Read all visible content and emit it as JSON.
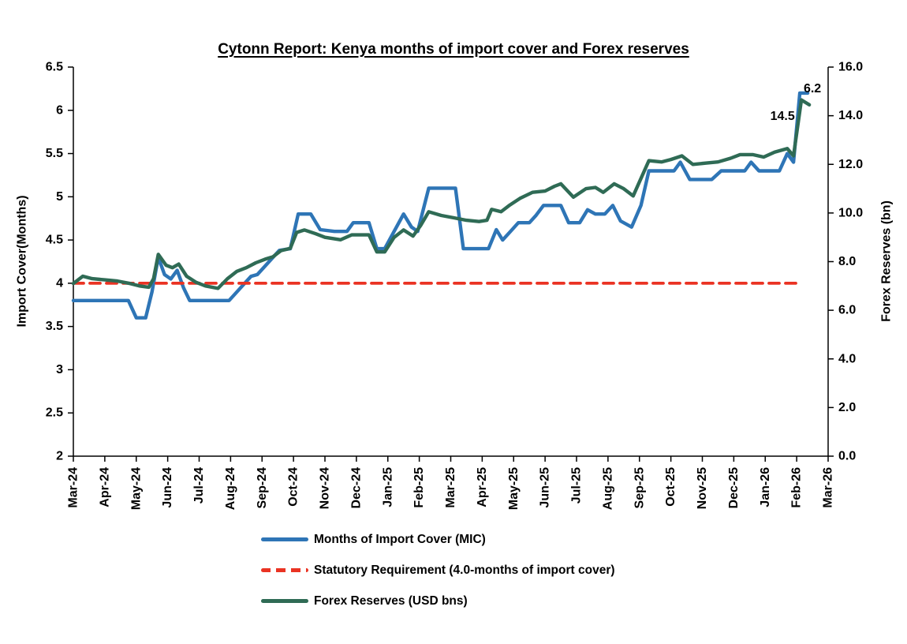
{
  "chart_data": {
    "type": "line",
    "title": "Cytonn Report: Kenya months of import cover and Forex reserves",
    "x_unit": "months after Mar-24 (weekly data points)",
    "x_categories": [
      "Mar-24",
      "Apr-24",
      "May-24",
      "Jun-24",
      "Jul-24",
      "Aug-24",
      "Sep-24",
      "Oct-24",
      "Nov-24",
      "Dec-24",
      "Jan-25",
      "Feb-25",
      "Mar-25",
      "Apr-25",
      "May-25",
      "Jun-25",
      "Jul-25",
      "Aug-25",
      "Sep-25",
      "Oct-25",
      "Nov-25",
      "Dec-25",
      "Jan-26",
      "Feb-26",
      "Mar-26"
    ],
    "left_axis": {
      "label": "Import Cover(Months)",
      "range": [
        2,
        6.5
      ],
      "tick_step": 0.5
    },
    "right_axis": {
      "label": "Forex Reserves (bn)",
      "range": [
        0,
        16
      ],
      "tick_step": 2
    },
    "x_range_months": [
      0,
      24
    ],
    "grid": false,
    "legend_position": "bottom-left",
    "series": [
      {
        "name": "Months of Import Cover (MIC)",
        "axis": "left",
        "color": "#2E75B6",
        "style": "solid",
        "points": [
          [
            0,
            3.8
          ],
          [
            0.5,
            3.8
          ],
          [
            1.0,
            3.8
          ],
          [
            1.5,
            3.8
          ],
          [
            1.75,
            3.8
          ],
          [
            2.0,
            3.6
          ],
          [
            2.3,
            3.6
          ],
          [
            2.5,
            3.9
          ],
          [
            2.7,
            4.3
          ],
          [
            2.9,
            4.1
          ],
          [
            3.1,
            4.05
          ],
          [
            3.3,
            4.15
          ],
          [
            3.5,
            3.95
          ],
          [
            3.7,
            3.8
          ],
          [
            4.1,
            3.8
          ],
          [
            4.5,
            3.8
          ],
          [
            4.95,
            3.8
          ],
          [
            5.2,
            3.9
          ],
          [
            5.45,
            4.0
          ],
          [
            5.65,
            4.08
          ],
          [
            5.85,
            4.1
          ],
          [
            6.1,
            4.2
          ],
          [
            6.35,
            4.3
          ],
          [
            6.55,
            4.38
          ],
          [
            6.9,
            4.4
          ],
          [
            7.15,
            4.8
          ],
          [
            7.55,
            4.8
          ],
          [
            7.85,
            4.62
          ],
          [
            8.3,
            4.6
          ],
          [
            8.7,
            4.6
          ],
          [
            8.9,
            4.7
          ],
          [
            9.4,
            4.7
          ],
          [
            9.65,
            4.4
          ],
          [
            9.9,
            4.4
          ],
          [
            10.2,
            4.6
          ],
          [
            10.5,
            4.8
          ],
          [
            10.75,
            4.65
          ],
          [
            10.95,
            4.6
          ],
          [
            11.3,
            5.1
          ],
          [
            11.7,
            5.1
          ],
          [
            12.15,
            5.1
          ],
          [
            12.4,
            4.4
          ],
          [
            12.8,
            4.4
          ],
          [
            13.2,
            4.4
          ],
          [
            13.45,
            4.62
          ],
          [
            13.65,
            4.5
          ],
          [
            13.9,
            4.6
          ],
          [
            14.15,
            4.7
          ],
          [
            14.5,
            4.7
          ],
          [
            14.7,
            4.78
          ],
          [
            14.95,
            4.9
          ],
          [
            15.5,
            4.9
          ],
          [
            15.75,
            4.7
          ],
          [
            16.1,
            4.7
          ],
          [
            16.35,
            4.85
          ],
          [
            16.6,
            4.8
          ],
          [
            16.9,
            4.8
          ],
          [
            17.15,
            4.9
          ],
          [
            17.4,
            4.72
          ],
          [
            17.75,
            4.65
          ],
          [
            18.05,
            4.9
          ],
          [
            18.3,
            5.3
          ],
          [
            18.75,
            5.3
          ],
          [
            19.1,
            5.3
          ],
          [
            19.3,
            5.4
          ],
          [
            19.6,
            5.2
          ],
          [
            20.0,
            5.2
          ],
          [
            20.3,
            5.2
          ],
          [
            20.6,
            5.3
          ],
          [
            21.0,
            5.3
          ],
          [
            21.35,
            5.3
          ],
          [
            21.55,
            5.4
          ],
          [
            21.8,
            5.3
          ],
          [
            22.2,
            5.3
          ],
          [
            22.45,
            5.3
          ],
          [
            22.7,
            5.5
          ],
          [
            22.9,
            5.4
          ],
          [
            23.1,
            6.2
          ],
          [
            23.35,
            6.2
          ]
        ]
      },
      {
        "name": "Statutory Requirement (4.0-months of import cover)",
        "axis": "left",
        "color": "#EA3323",
        "style": "dashed",
        "points": [
          [
            0,
            4.0
          ],
          [
            23.0,
            4.0
          ]
        ]
      },
      {
        "name": "Forex Reserves (USD bns)",
        "axis": "right",
        "color": "#2F6B55",
        "style": "solid",
        "points": [
          [
            0,
            7.1
          ],
          [
            0.3,
            7.4
          ],
          [
            0.6,
            7.3
          ],
          [
            1.0,
            7.25
          ],
          [
            1.4,
            7.2
          ],
          [
            1.8,
            7.1
          ],
          [
            2.1,
            7.0
          ],
          [
            2.4,
            6.95
          ],
          [
            2.55,
            7.3
          ],
          [
            2.7,
            8.3
          ],
          [
            2.95,
            7.85
          ],
          [
            3.15,
            7.75
          ],
          [
            3.35,
            7.9
          ],
          [
            3.6,
            7.4
          ],
          [
            3.9,
            7.15
          ],
          [
            4.2,
            7.0
          ],
          [
            4.6,
            6.9
          ],
          [
            4.9,
            7.3
          ],
          [
            5.2,
            7.6
          ],
          [
            5.5,
            7.75
          ],
          [
            5.8,
            7.95
          ],
          [
            6.1,
            8.1
          ],
          [
            6.35,
            8.2
          ],
          [
            6.6,
            8.45
          ],
          [
            6.9,
            8.55
          ],
          [
            7.1,
            9.2
          ],
          [
            7.35,
            9.3
          ],
          [
            7.7,
            9.15
          ],
          [
            8.0,
            9.0
          ],
          [
            8.5,
            8.9
          ],
          [
            8.85,
            9.1
          ],
          [
            9.4,
            9.1
          ],
          [
            9.65,
            8.4
          ],
          [
            9.9,
            8.4
          ],
          [
            10.2,
            9.0
          ],
          [
            10.5,
            9.3
          ],
          [
            10.8,
            9.05
          ],
          [
            11.05,
            9.5
          ],
          [
            11.3,
            10.05
          ],
          [
            11.7,
            9.9
          ],
          [
            12.1,
            9.8
          ],
          [
            12.5,
            9.7
          ],
          [
            12.9,
            9.65
          ],
          [
            13.15,
            9.7
          ],
          [
            13.3,
            10.15
          ],
          [
            13.6,
            10.05
          ],
          [
            13.85,
            10.3
          ],
          [
            14.2,
            10.6
          ],
          [
            14.6,
            10.85
          ],
          [
            15.0,
            10.9
          ],
          [
            15.3,
            11.1
          ],
          [
            15.5,
            11.2
          ],
          [
            15.9,
            10.65
          ],
          [
            16.3,
            11.0
          ],
          [
            16.6,
            11.05
          ],
          [
            16.85,
            10.85
          ],
          [
            17.2,
            11.2
          ],
          [
            17.5,
            11.0
          ],
          [
            17.8,
            10.7
          ],
          [
            18.3,
            12.15
          ],
          [
            18.7,
            12.1
          ],
          [
            19.0,
            12.2
          ],
          [
            19.35,
            12.35
          ],
          [
            19.7,
            12.0
          ],
          [
            20.1,
            12.05
          ],
          [
            20.5,
            12.1
          ],
          [
            20.9,
            12.25
          ],
          [
            21.2,
            12.4
          ],
          [
            21.6,
            12.4
          ],
          [
            21.95,
            12.3
          ],
          [
            22.3,
            12.5
          ],
          [
            22.7,
            12.65
          ],
          [
            22.9,
            12.35
          ],
          [
            23.15,
            14.65
          ],
          [
            23.4,
            14.45
          ]
        ]
      }
    ],
    "annotations": [
      {
        "text": "6.2",
        "axis": "left",
        "x": 23.5,
        "y": 6.21
      },
      {
        "text": "14.5",
        "axis": "right",
        "x": 22.55,
        "y": 13.83
      }
    ],
    "last_values": {
      "mic": 6.2,
      "forex_reserves": 14.5,
      "statutory": 4.0
    }
  }
}
